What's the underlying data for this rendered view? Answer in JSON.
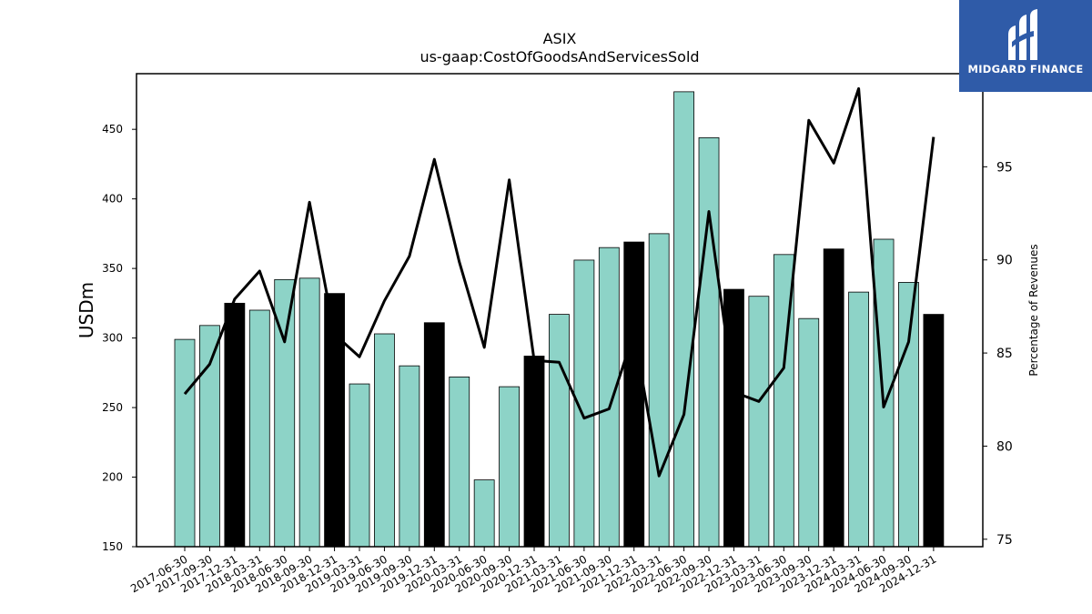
{
  "chart_data": {
    "type": "bar",
    "title": "ASIX",
    "subtitle": "us-gaap:CostOfGoodsAndServicesSold",
    "ylabel": "USDm",
    "y2label": "Percentage of Revenues",
    "ylim": [
      150,
      490
    ],
    "y2lim": [
      74.6,
      100.0
    ],
    "yticks": [
      150,
      200,
      250,
      300,
      350,
      400,
      450
    ],
    "y2ticks": [
      75,
      80,
      85,
      90,
      95
    ],
    "grid": false,
    "categories": [
      "2017-06-30",
      "2017-09-30",
      "2017-12-31",
      "2018-03-31",
      "2018-06-30",
      "2018-09-30",
      "2018-12-31",
      "2019-03-31",
      "2019-06-30",
      "2019-09-30",
      "2019-12-31",
      "2020-03-31",
      "2020-06-30",
      "2020-09-30",
      "2020-12-31",
      "2021-03-31",
      "2021-06-30",
      "2021-09-30",
      "2021-12-31",
      "2022-03-31",
      "2022-06-30",
      "2022-09-30",
      "2022-12-31",
      "2023-03-31",
      "2023-06-30",
      "2023-09-30",
      "2023-12-31",
      "2024-03-31",
      "2024-06-30",
      "2024-09-30",
      "2024-12-31"
    ],
    "series": [
      {
        "kind": "bar",
        "values": [
          299,
          309,
          325,
          320,
          342,
          343,
          332,
          267,
          303,
          280,
          311,
          272,
          198,
          265,
          287,
          317,
          356,
          365,
          369,
          375,
          477,
          444,
          335,
          330,
          360,
          314,
          364,
          333,
          371,
          340,
          317
        ],
        "colors": [
          "#8dd3c7",
          "#8dd3c7",
          "#000000",
          "#8dd3c7",
          "#8dd3c7",
          "#8dd3c7",
          "#000000",
          "#8dd3c7",
          "#8dd3c7",
          "#8dd3c7",
          "#000000",
          "#8dd3c7",
          "#8dd3c7",
          "#8dd3c7",
          "#000000",
          "#8dd3c7",
          "#8dd3c7",
          "#8dd3c7",
          "#000000",
          "#8dd3c7",
          "#8dd3c7",
          "#8dd3c7",
          "#000000",
          "#8dd3c7",
          "#8dd3c7",
          "#8dd3c7",
          "#000000",
          "#8dd3c7",
          "#8dd3c7",
          "#8dd3c7",
          "#000000"
        ]
      },
      {
        "kind": "line",
        "axis": "right",
        "color": "#000000",
        "values": [
          82.8,
          84.4,
          87.9,
          89.4,
          85.6,
          93.1,
          86.0,
          84.8,
          87.8,
          90.2,
          95.4,
          89.9,
          85.3,
          94.3,
          84.6,
          84.5,
          81.5,
          82.0,
          86.1,
          78.4,
          81.7,
          92.6,
          82.9,
          82.4,
          84.2,
          97.5,
          95.2,
          99.2,
          82.1,
          85.6,
          96.6
        ]
      }
    ]
  },
  "logo": {
    "text": "MIDGARD FINANCE"
  }
}
